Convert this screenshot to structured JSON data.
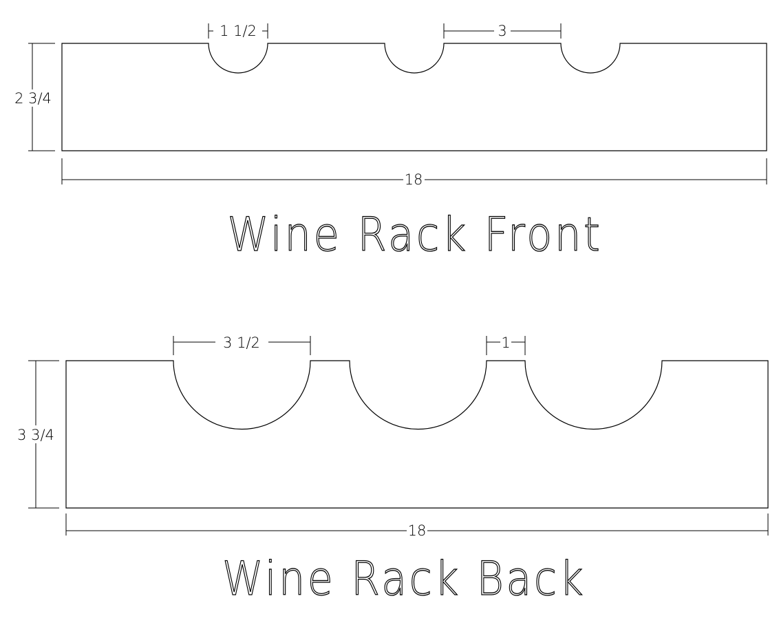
{
  "front": {
    "title": "Wine Rack Front",
    "notch_width_label": "1 1/2",
    "spacing_label": "3",
    "height_label": "2 3/4",
    "length_label": "18"
  },
  "back": {
    "title": "Wine Rack Back",
    "notch_width_label": "3 1/2",
    "spacing_label": "1",
    "height_label": "3 3/4",
    "length_label": "18"
  }
}
